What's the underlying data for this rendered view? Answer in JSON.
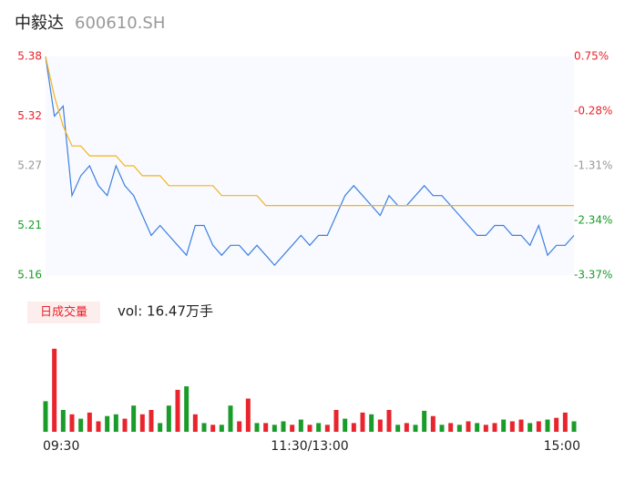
{
  "chart_data": [
    {
      "type": "line",
      "title": "中毅达",
      "subtitle": "600610.SH",
      "x": [
        0,
        4,
        8,
        12,
        16,
        20,
        24,
        28,
        32,
        36,
        40,
        44,
        48,
        52,
        56,
        60,
        64,
        68,
        72,
        76,
        80,
        84,
        88,
        92,
        96,
        100,
        104,
        108,
        112,
        116,
        120,
        124,
        128,
        132,
        136,
        140,
        144,
        148,
        152,
        156,
        160,
        164,
        168,
        172,
        176,
        180,
        184,
        188,
        192,
        196,
        200,
        204,
        208,
        212,
        216,
        220,
        224,
        228,
        232,
        236,
        240
      ],
      "xlim": [
        0,
        240
      ],
      "xticks": [
        {
          "value": 0,
          "label": "09:30"
        },
        {
          "value": 120,
          "label": "11:30/13:00"
        },
        {
          "value": 240,
          "label": "15:00"
        }
      ],
      "ylim": [
        5.16,
        5.38
      ],
      "yticks": [
        5.38,
        5.32,
        5.27,
        5.21,
        5.16
      ],
      "ytick_colors": [
        "#e8242c",
        "#e8242c",
        "#999999",
        "#1a9c2a",
        "#1a9c2a"
      ],
      "y2lim": [
        -3.37,
        0.75
      ],
      "y2ticks": [
        {
          "value": 0.75,
          "label": "0.75%"
        },
        {
          "value": -0.28,
          "label": "-0.28%"
        },
        {
          "value": -1.31,
          "label": "-1.31%"
        },
        {
          "value": -2.34,
          "label": "-2.34%"
        },
        {
          "value": -3.37,
          "label": "-3.37%"
        }
      ],
      "series": [
        {
          "name": "price",
          "color": "#3d7fe0",
          "values": [
            5.38,
            5.32,
            5.33,
            5.24,
            5.26,
            5.27,
            5.25,
            5.24,
            5.27,
            5.25,
            5.24,
            5.22,
            5.2,
            5.21,
            5.2,
            5.19,
            5.18,
            5.21,
            5.21,
            5.19,
            5.18,
            5.19,
            5.19,
            5.18,
            5.19,
            5.18,
            5.17,
            5.18,
            5.19,
            5.2,
            5.19,
            5.2,
            5.2,
            5.22,
            5.24,
            5.25,
            5.24,
            5.23,
            5.22,
            5.24,
            5.23,
            5.23,
            5.24,
            5.25,
            5.24,
            5.24,
            5.23,
            5.22,
            5.21,
            5.2,
            5.2,
            5.21,
            5.21,
            5.2,
            5.2,
            5.19,
            5.21,
            5.18,
            5.19,
            5.19,
            5.2
          ]
        },
        {
          "name": "average",
          "color": "#f5b31b",
          "values": [
            5.38,
            5.34,
            5.31,
            5.29,
            5.29,
            5.28,
            5.28,
            5.28,
            5.28,
            5.27,
            5.27,
            5.26,
            5.26,
            5.26,
            5.25,
            5.25,
            5.25,
            5.25,
            5.25,
            5.25,
            5.24,
            5.24,
            5.24,
            5.24,
            5.24,
            5.23,
            5.23,
            5.23,
            5.23,
            5.23,
            5.23,
            5.23,
            5.23,
            5.23,
            5.23,
            5.23,
            5.23,
            5.23,
            5.23,
            5.23,
            5.23,
            5.23,
            5.23,
            5.23,
            5.23,
            5.23,
            5.23,
            5.23,
            5.23,
            5.23,
            5.23,
            5.23,
            5.23,
            5.23,
            5.23,
            5.23,
            5.23,
            5.23,
            5.23,
            5.23,
            5.23
          ]
        }
      ]
    },
    {
      "type": "bar",
      "legend": "日成交量",
      "annotation": "vol: 16.47万手",
      "x": [
        0,
        4,
        8,
        12,
        16,
        20,
        24,
        28,
        32,
        36,
        40,
        44,
        48,
        52,
        56,
        60,
        64,
        68,
        72,
        76,
        80,
        84,
        88,
        92,
        96,
        100,
        104,
        108,
        112,
        116,
        120,
        124,
        128,
        132,
        136,
        140,
        144,
        148,
        152,
        156,
        160,
        164,
        168,
        172,
        176,
        180,
        184,
        188,
        192,
        196,
        200,
        204,
        208,
        212,
        216,
        220,
        224,
        228,
        232,
        236,
        240
      ],
      "xlim": [
        0,
        240
      ],
      "ylim": [
        0,
        100
      ],
      "values": [
        35,
        95,
        25,
        20,
        15,
        22,
        12,
        18,
        20,
        15,
        30,
        20,
        25,
        10,
        30,
        48,
        52,
        20,
        10,
        8,
        8,
        30,
        12,
        38,
        10,
        10,
        8,
        12,
        8,
        14,
        8,
        10,
        8,
        25,
        15,
        10,
        22,
        20,
        14,
        25,
        8,
        10,
        8,
        24,
        18,
        8,
        10,
        8,
        12,
        10,
        8,
        10,
        14,
        12,
        14,
        10,
        12,
        14,
        16,
        22,
        12
      ],
      "colors": [
        "#1a9c2a",
        "#e8242c",
        "#1a9c2a",
        "#e8242c",
        "#1a9c2a",
        "#e8242c",
        "#e8242c",
        "#1a9c2a",
        "#1a9c2a",
        "#e8242c",
        "#1a9c2a",
        "#e8242c",
        "#e8242c",
        "#1a9c2a",
        "#1a9c2a",
        "#e8242c",
        "#1a9c2a",
        "#e8242c",
        "#1a9c2a",
        "#e8242c",
        "#1a9c2a",
        "#1a9c2a",
        "#e8242c",
        "#e8242c",
        "#1a9c2a",
        "#e8242c",
        "#1a9c2a",
        "#1a9c2a",
        "#e8242c",
        "#1a9c2a",
        "#e8242c",
        "#1a9c2a",
        "#e8242c",
        "#e8242c",
        "#1a9c2a",
        "#e8242c",
        "#e8242c",
        "#1a9c2a",
        "#e8242c",
        "#e8242c",
        "#1a9c2a",
        "#e8242c",
        "#1a9c2a",
        "#1a9c2a",
        "#e8242c",
        "#1a9c2a",
        "#e8242c",
        "#1a9c2a",
        "#e8242c",
        "#1a9c2a",
        "#e8242c",
        "#e8242c",
        "#1a9c2a",
        "#e8242c",
        "#e8242c",
        "#1a9c2a",
        "#e8242c",
        "#1a9c2a",
        "#e8242c",
        "#e8242c",
        "#1a9c2a"
      ]
    }
  ]
}
